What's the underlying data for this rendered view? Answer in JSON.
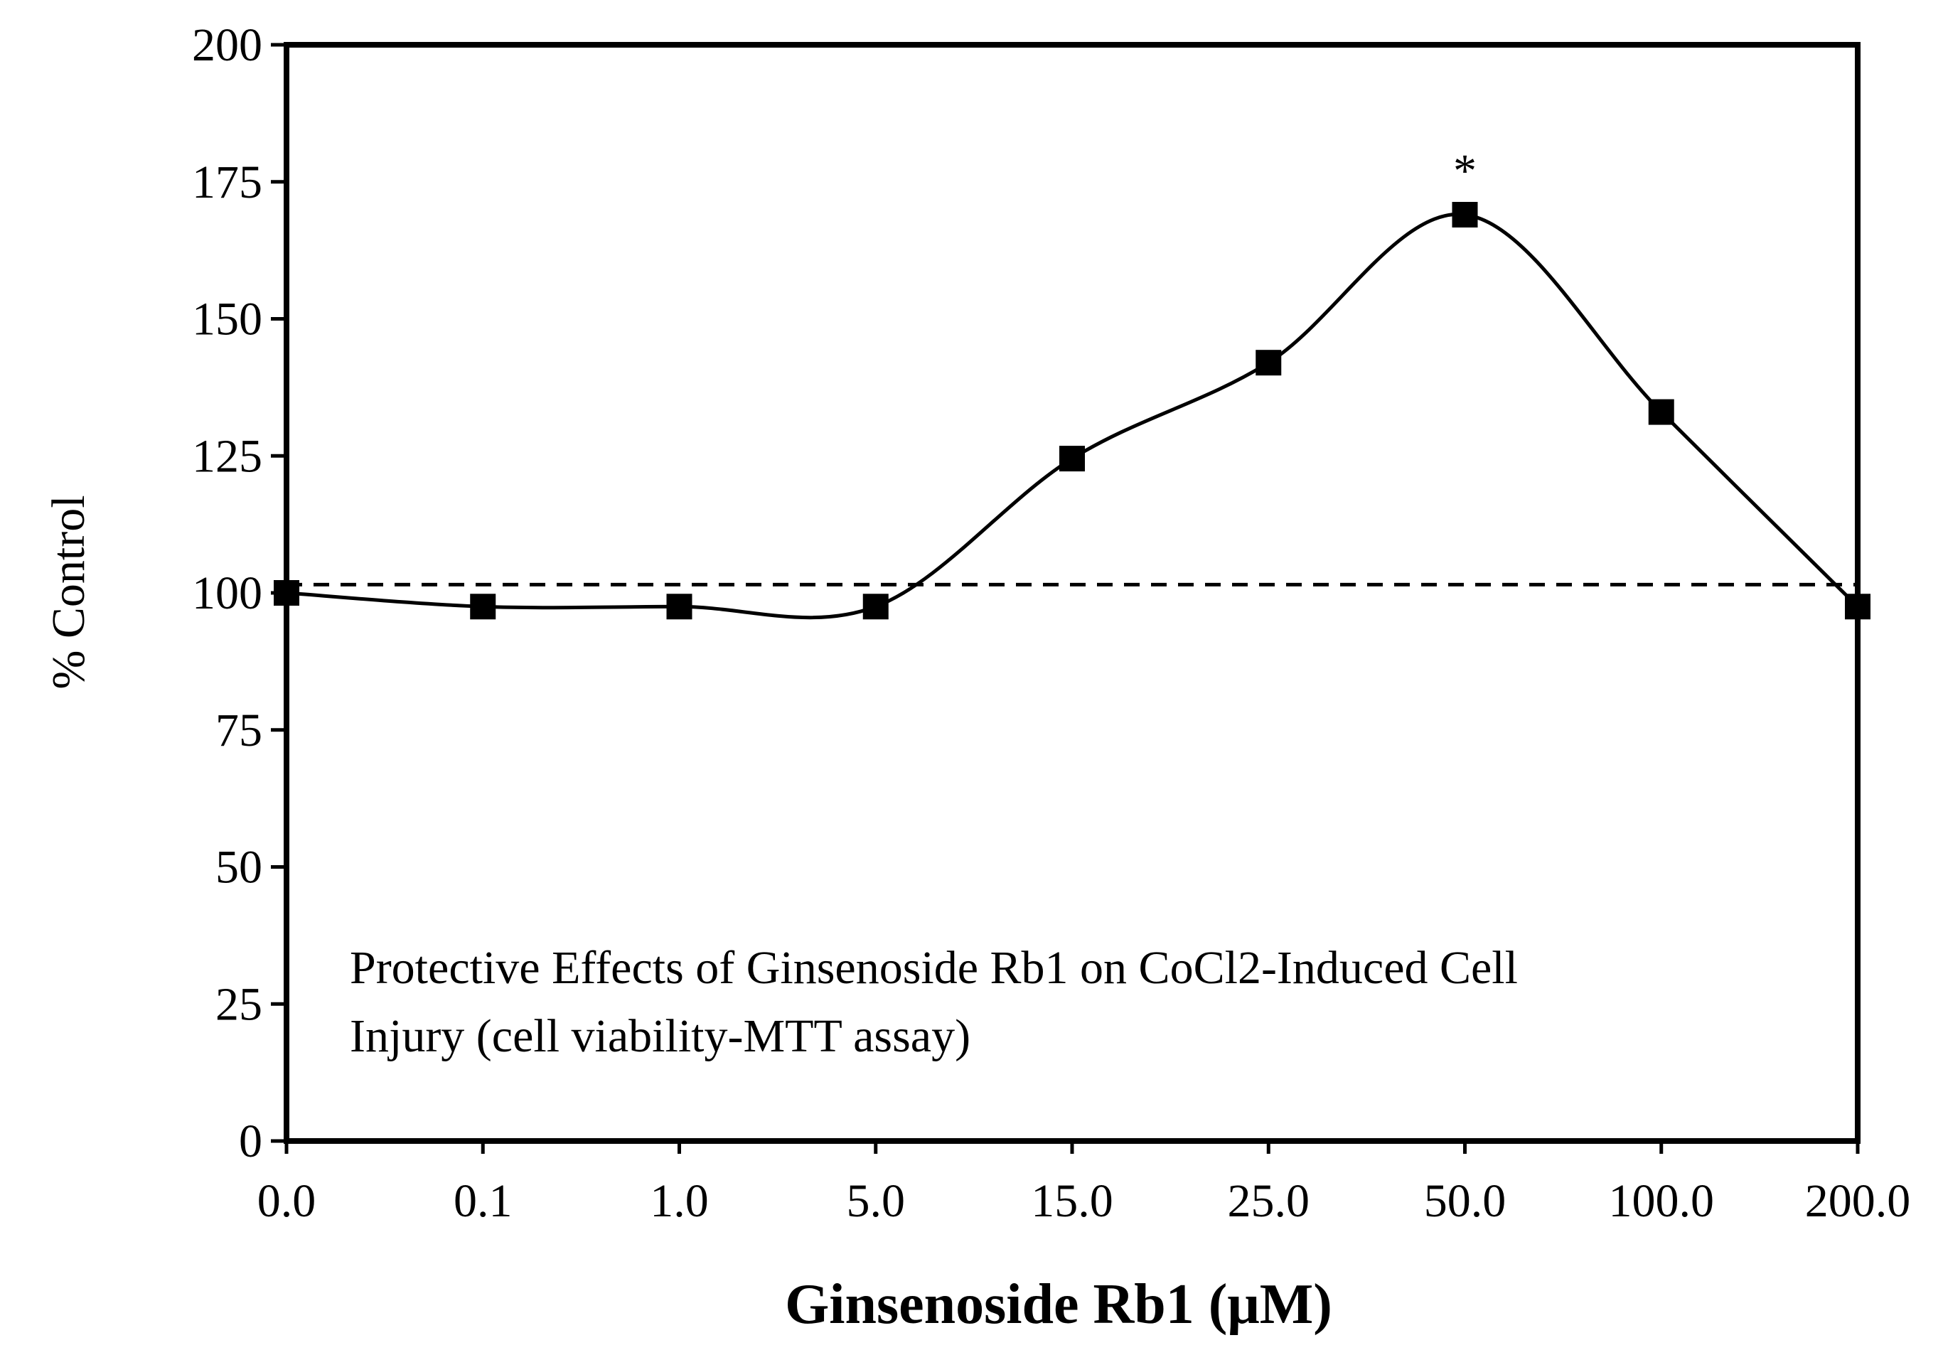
{
  "chart_data": {
    "type": "line",
    "title": "",
    "xlabel": "Ginsenoside Rb1 (μM)",
    "ylabel": "% Control",
    "categories": [
      "0.0",
      "0.1",
      "1.0",
      "5.0",
      "15.0",
      "25.0",
      "50.0",
      "100.0",
      "200.0"
    ],
    "series": [
      {
        "values": [
          100,
          97.5,
          97.5,
          97.5,
          124.5,
          142,
          169,
          133,
          97.5
        ]
      }
    ],
    "ylim": [
      0,
      200
    ],
    "yticks": [
      "0",
      "25",
      "50",
      "75",
      "100",
      "125",
      "150",
      "175",
      "200"
    ],
    "reference_line": {
      "value": 101.5,
      "style": "dashed"
    },
    "annotation": "Protective Effects of Ginsenoside Rb1 on CoCl2-Induced Cell Injury (cell viability-MTT assay)",
    "annotation_lines": [
      "Protective Effects of Ginsenoside Rb1 on CoCl2-Induced Cell",
      "Injury (cell viability-MTT assay)"
    ],
    "significance": {
      "category": "50.0",
      "marker": "*"
    },
    "grid": false,
    "legend": "none",
    "colors": {
      "line": "#000000",
      "marker": "#000000",
      "axis": "#000000"
    }
  }
}
